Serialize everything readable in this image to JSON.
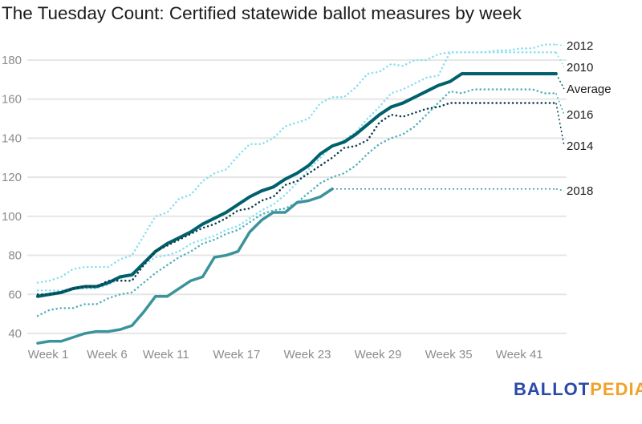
{
  "chart_data": {
    "type": "line",
    "title": "The Tuesday Count: Certified statewide ballot measures by week",
    "xlabel": "",
    "ylabel": "",
    "x": [
      1,
      2,
      3,
      4,
      5,
      6,
      7,
      8,
      9,
      10,
      11,
      12,
      13,
      14,
      15,
      16,
      17,
      18,
      19,
      20,
      21,
      22,
      23,
      24,
      25,
      26,
      27,
      28,
      29,
      30,
      31,
      32,
      33,
      34,
      35,
      36,
      37,
      38,
      39,
      40,
      41,
      42,
      43,
      44,
      45
    ],
    "x_tick_labels": [
      {
        "week": 1,
        "label": "Week 1"
      },
      {
        "week": 6,
        "label": "Week 6"
      },
      {
        "week": 11,
        "label": "Week 11"
      },
      {
        "week": 17,
        "label": "Week 17"
      },
      {
        "week": 23,
        "label": "Week 23"
      },
      {
        "week": 29,
        "label": "Week 29"
      },
      {
        "week": 35,
        "label": "Week 35"
      },
      {
        "week": 41,
        "label": "Week 41"
      }
    ],
    "y_ticks": [
      40,
      60,
      80,
      100,
      120,
      140,
      160,
      180
    ],
    "ylim": [
      35,
      190
    ],
    "grid": "horizontal",
    "legend": "direct labels at right end of lines",
    "series": [
      {
        "name": "2012",
        "style": "dotted",
        "color": "#86dff0",
        "values": [
          66,
          67,
          69,
          73,
          74,
          74,
          74,
          78,
          80,
          90,
          100,
          102,
          109,
          111,
          118,
          122,
          124,
          131,
          137,
          137,
          140,
          146,
          148,
          150,
          158,
          161,
          161,
          166,
          173,
          174,
          178,
          177,
          180,
          180,
          183,
          184,
          184,
          184,
          184,
          185,
          185,
          186,
          186,
          188,
          188
        ]
      },
      {
        "name": "2010",
        "style": "dotted",
        "color": "#86dff0",
        "values": [
          62,
          62,
          62,
          63,
          63,
          63,
          65,
          68,
          71,
          75,
          79,
          80,
          82,
          86,
          88,
          90,
          93,
          95,
          99,
          103,
          106,
          111,
          117,
          124,
          130,
          136,
          139,
          143,
          150,
          156,
          163,
          165,
          168,
          171,
          172,
          184,
          184,
          184,
          184,
          184,
          184,
          184,
          184,
          184,
          184
        ]
      },
      {
        "name": "Average",
        "style": "solid",
        "color": "#00606b",
        "values": [
          59,
          60,
          61,
          63,
          64,
          64,
          66,
          69,
          70,
          76,
          82,
          86,
          89,
          92,
          96,
          99,
          102,
          106,
          110,
          113,
          115,
          119,
          122,
          126,
          132,
          136,
          138,
          142,
          147,
          152,
          156,
          158,
          161,
          164,
          167,
          169,
          173,
          173,
          173,
          173,
          173,
          173,
          173,
          173,
          173
        ]
      },
      {
        "name": "2016",
        "style": "dotted",
        "color": "#4fb0bb",
        "values": [
          49,
          52,
          53,
          53,
          55,
          55,
          58,
          60,
          61,
          66,
          71,
          75,
          79,
          82,
          86,
          88,
          91,
          93,
          97,
          101,
          103,
          104,
          107,
          112,
          117,
          120,
          122,
          126,
          132,
          137,
          140,
          142,
          146,
          152,
          158,
          164,
          163,
          165,
          165,
          165,
          165,
          165,
          165,
          163,
          163
        ]
      },
      {
        "name": "2014",
        "style": "dotted",
        "color": "#0b3c4a",
        "values": [
          60,
          60,
          61,
          63,
          64,
          64,
          67,
          67,
          67,
          75,
          82,
          85,
          88,
          91,
          94,
          96,
          99,
          103,
          104,
          108,
          110,
          116,
          118,
          122,
          126,
          130,
          135,
          136,
          139,
          148,
          152,
          151,
          153,
          155,
          156,
          158,
          158,
          158,
          158,
          158,
          158,
          158,
          158,
          158,
          158
        ]
      },
      {
        "name": "2018",
        "style": "solid",
        "projection": "dotted",
        "color": "#3a939b",
        "values": [
          35,
          36,
          36,
          38,
          40,
          41,
          41,
          42,
          44,
          51,
          59,
          59,
          63,
          67,
          69,
          79,
          80,
          82,
          92,
          98,
          102,
          102,
          107,
          108,
          110,
          114,
          null,
          null,
          null,
          null,
          null,
          null,
          null,
          null,
          null,
          null,
          null,
          null,
          null,
          null,
          null,
          null,
          null,
          null,
          null
        ],
        "projected_value": 114
      }
    ]
  },
  "logo": {
    "part1": "BALLOT",
    "part2": "PEDIA",
    "color1": "#2a4aa8",
    "color2": "#f2a22a"
  }
}
